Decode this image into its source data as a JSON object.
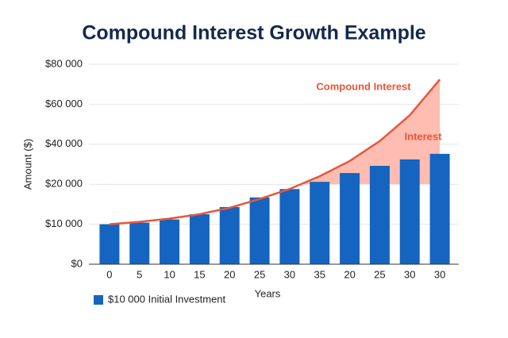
{
  "chart_data": {
    "type": "bar",
    "title": "Compound Interest Growth Example",
    "x_label": "Years",
    "y_label": "Amount ($)",
    "categories": [
      "0",
      "5",
      "10",
      "15",
      "20",
      "25",
      "30",
      "35",
      "20",
      "25",
      "30",
      "30"
    ],
    "series": [
      {
        "name": "$10 000 Initial Investment",
        "type": "bar",
        "color": "#1565c0",
        "values": [
          10000,
          10400,
          11200,
          12500,
          14300,
          16700,
          18800,
          21200,
          25600,
          29200,
          32400,
          35200
        ]
      },
      {
        "name": "Compound Interest",
        "type": "line",
        "color": "#e8553a",
        "area_color": "#ffbcb1",
        "values": [
          10000,
          10600,
          11400,
          12500,
          14100,
          16300,
          18800,
          24000,
          31600,
          41600,
          54500,
          72400
        ]
      }
    ],
    "annotations": [
      "Interest"
    ],
    "ylim": [
      0,
      80000
    ],
    "yticks": [
      {
        "value": 0,
        "label": "$0"
      },
      {
        "value": 10000,
        "label": "$10 000"
      },
      {
        "value": 20000,
        "label": "$20 000"
      },
      {
        "value": 40000,
        "label": "$40 000"
      },
      {
        "value": 60000,
        "label": "$60 000"
      },
      {
        "value": 80000,
        "label": "$80 000"
      }
    ],
    "grid": true,
    "legend": "bottom-left"
  }
}
